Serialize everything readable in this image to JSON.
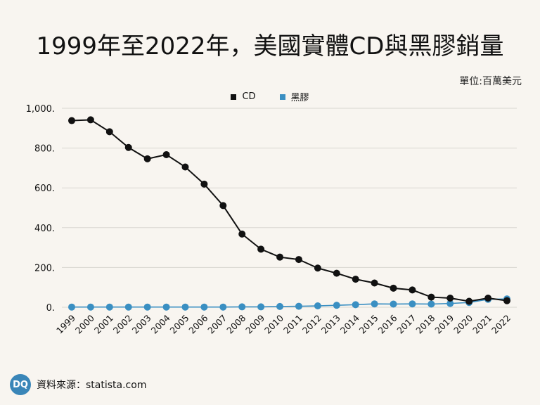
{
  "title": "1999年至2022年，美國實體CD與黑膠銷量",
  "unit_label": "單位:百萬美元",
  "footer": {
    "logo_text": "DQ",
    "source_text": "資料來源：statista.com"
  },
  "colors": {
    "cd": "#111111",
    "vinyl": "#3a8fc2",
    "grid": "#d9d6d1",
    "background": "#f8f5f0"
  },
  "chart_data": {
    "type": "line",
    "x": [
      "1999",
      "2000",
      "2001",
      "2002",
      "2003",
      "2004",
      "2005",
      "2006",
      "2007",
      "2008",
      "2009",
      "2010",
      "2011",
      "2012",
      "2013",
      "2014",
      "2015",
      "2016",
      "2017",
      "2018",
      "2019",
      "2020",
      "2021",
      "2022"
    ],
    "series": [
      {
        "name": "CD",
        "values": [
          938,
          942,
          882,
          803,
          746,
          767,
          705,
          619,
          511,
          368,
          292,
          252,
          240,
          197,
          171,
          141,
          122,
          96,
          87,
          51,
          46,
          30,
          46,
          33
        ]
      },
      {
        "name": "黑膠",
        "values": [
          1,
          1,
          1,
          1,
          1,
          1,
          1,
          1,
          1,
          2,
          2,
          4,
          5,
          7,
          10,
          13,
          17,
          16,
          17,
          16,
          19,
          24,
          40,
          42
        ]
      }
    ],
    "ylim": [
      0,
      1000
    ],
    "y_ticks": [
      0,
      200,
      400,
      600,
      800,
      1000
    ],
    "y_tick_labels": [
      "0.",
      "200.",
      "400.",
      "600.",
      "800.",
      "1,000."
    ],
    "grid": true,
    "legend_position": "top-center"
  }
}
